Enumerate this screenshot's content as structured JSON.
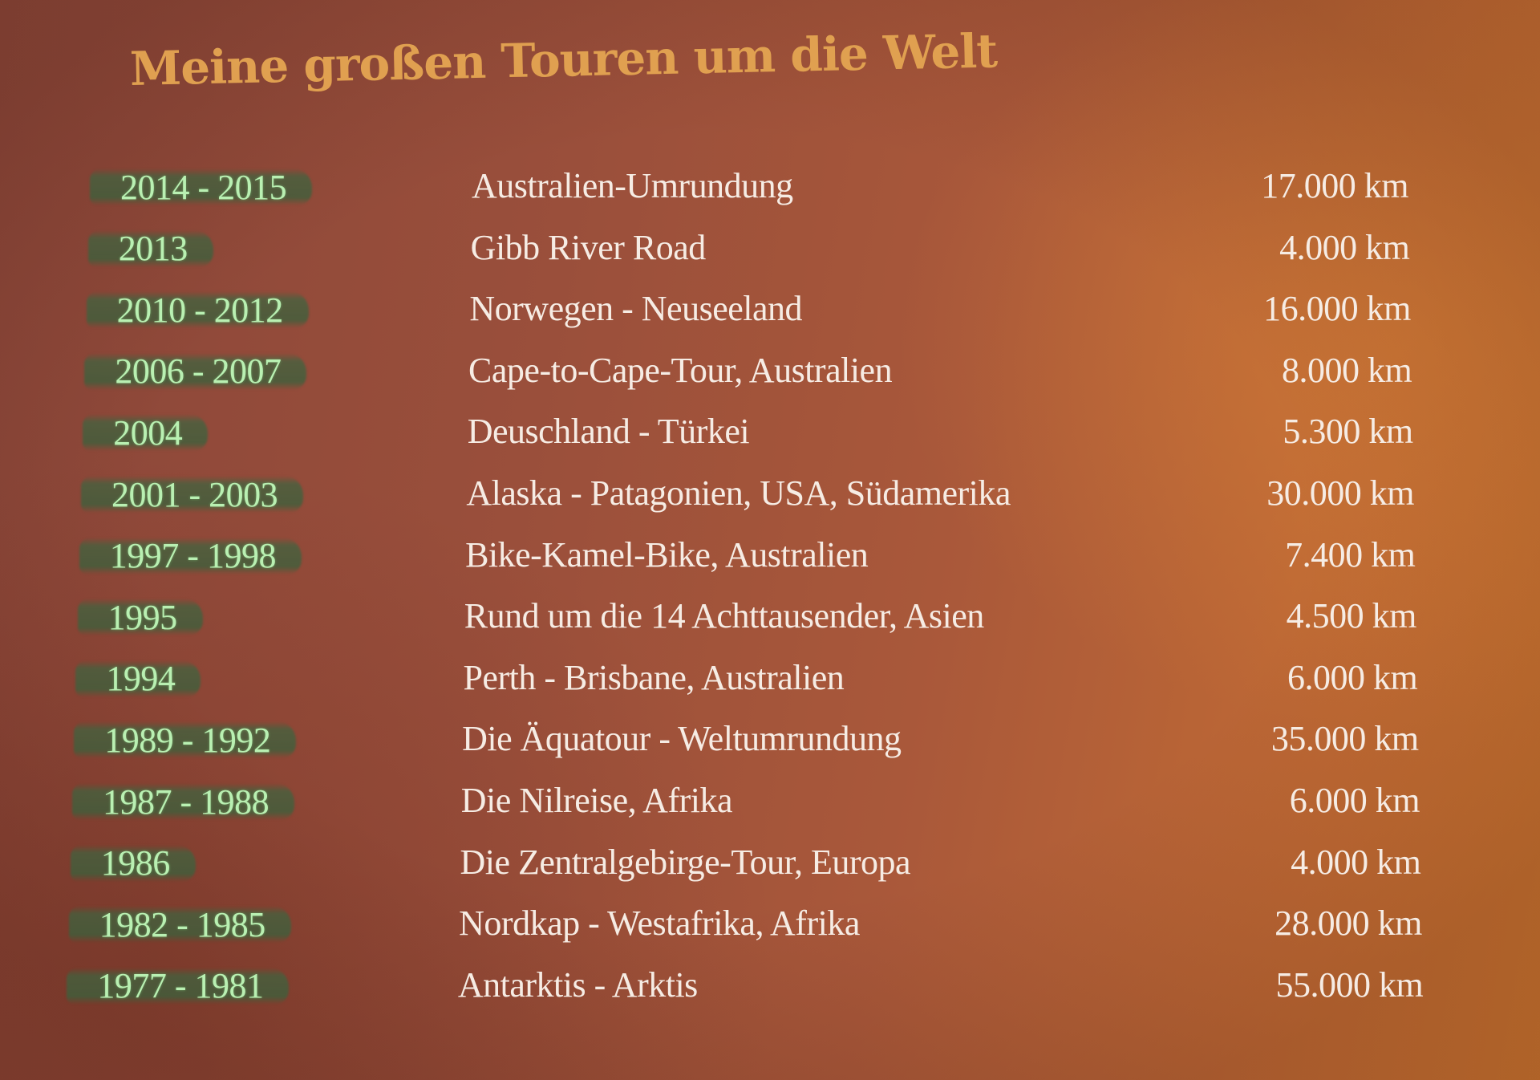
{
  "title": "Meine großen Touren um die Welt",
  "colors": {
    "title": "#e0a050",
    "years_text": "#b9f0b2",
    "highlighter": "#3e6440",
    "body_text": "#f6ece4",
    "background_left": "#8a4639",
    "background_right": "#c9742f"
  },
  "tours": [
    {
      "years": "2014 - 2015",
      "route": "Australien-Umrundung",
      "distance": "17.000 km"
    },
    {
      "years": "2013",
      "route": "Gibb River Road",
      "distance": "4.000 km"
    },
    {
      "years": "2010 - 2012",
      "route": "Norwegen - Neuseeland",
      "distance": "16.000 km"
    },
    {
      "years": "2006 - 2007",
      "route": "Cape-to-Cape-Tour, Australien",
      "distance": "8.000 km"
    },
    {
      "years": "2004",
      "route": "Deuschland - Türkei",
      "distance": "5.300 km"
    },
    {
      "years": "2001 - 2003",
      "route": "Alaska - Patagonien, USA, Südamerika",
      "distance": "30.000 km"
    },
    {
      "years": "1997 - 1998",
      "route": "Bike-Kamel-Bike, Australien",
      "distance": "7.400 km"
    },
    {
      "years": "1995",
      "route": "Rund um die 14 Achttausender, Asien",
      "distance": "4.500 km"
    },
    {
      "years": "1994",
      "route": "Perth - Brisbane, Australien",
      "distance": "6.000 km"
    },
    {
      "years": "1989 - 1992",
      "route": "Die Äquatour - Weltumrundung",
      "distance": "35.000 km"
    },
    {
      "years": "1987 - 1988",
      "route": "Die Nilreise, Afrika",
      "distance": "6.000 km"
    },
    {
      "years": "1986",
      "route": "Die Zentralgebirge-Tour, Europa",
      "distance": "4.000 km"
    },
    {
      "years": "1982 - 1985",
      "route": "Nordkap - Westafrika, Afrika",
      "distance": "28.000 km"
    },
    {
      "years": "1977 - 1981",
      "route": "Antarktis - Arktis",
      "distance": "55.000 km"
    }
  ]
}
